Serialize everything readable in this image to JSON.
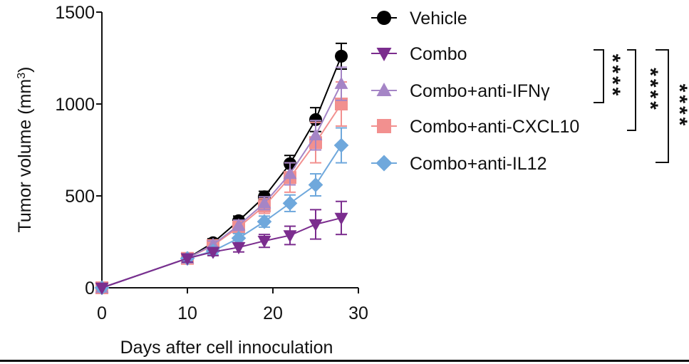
{
  "chart_data": {
    "type": "line",
    "title": "",
    "xlabel": "Days after cell innoculation",
    "ylabel_main": "Tumor  volume (mm",
    "ylabel_sup": "3",
    "ylabel_close": ")",
    "xlim": [
      0,
      30
    ],
    "ylim": [
      0,
      1500
    ],
    "xticks": [
      0,
      10,
      20,
      30
    ],
    "yticks": [
      0,
      500,
      1000,
      1500
    ],
    "grid": false,
    "legend_position": "right",
    "x": [
      0,
      10,
      13,
      16,
      19,
      22,
      25,
      28
    ],
    "series": [
      {
        "name": "Vehicle",
        "marker": "circle",
        "color": "#000000",
        "values": [
          0,
          160,
          245,
          365,
          495,
          675,
          915,
          1260
        ],
        "errors": [
          0,
          20,
          22,
          25,
          30,
          45,
          65,
          70
        ]
      },
      {
        "name": "Combo+anti-CXCL10",
        "marker": "square",
        "color": "#f2908f",
        "values": [
          0,
          160,
          230,
          330,
          445,
          600,
          790,
          1000
        ],
        "errors": [
          0,
          20,
          20,
          30,
          40,
          80,
          110,
          120
        ]
      },
      {
        "name": "Combo+anti-IFNγ",
        "marker": "triangle-up",
        "color": "#a585c6",
        "values": [
          0,
          160,
          235,
          340,
          460,
          620,
          830,
          1110
        ],
        "errors": [
          0,
          20,
          20,
          28,
          35,
          60,
          80,
          90
        ]
      },
      {
        "name": "Combo+anti-IL12",
        "marker": "diamond",
        "color": "#6fa8dc",
        "values": [
          0,
          160,
          200,
          270,
          360,
          460,
          560,
          775
        ],
        "errors": [
          0,
          20,
          20,
          25,
          30,
          45,
          60,
          95
        ]
      },
      {
        "name": "Combo",
        "marker": "triangle-down",
        "color": "#7b2d8e",
        "values": [
          0,
          160,
          195,
          220,
          255,
          285,
          345,
          380
        ],
        "errors": [
          0,
          20,
          20,
          25,
          35,
          50,
          80,
          90
        ]
      }
    ],
    "legend_order": [
      "Vehicle",
      "Combo",
      "Combo+anti-IFNγ",
      "Combo+anti-CXCL10",
      "Combo+anti-IL12"
    ],
    "significance": [
      {
        "label": "****",
        "compares": [
          "Combo",
          "Combo+anti-IFNγ"
        ]
      },
      {
        "label": "****",
        "compares": [
          "Combo",
          "Combo+anti-CXCL10"
        ]
      },
      {
        "label": "****",
        "compares": [
          "Combo",
          "Combo+anti-IL12"
        ]
      }
    ]
  }
}
